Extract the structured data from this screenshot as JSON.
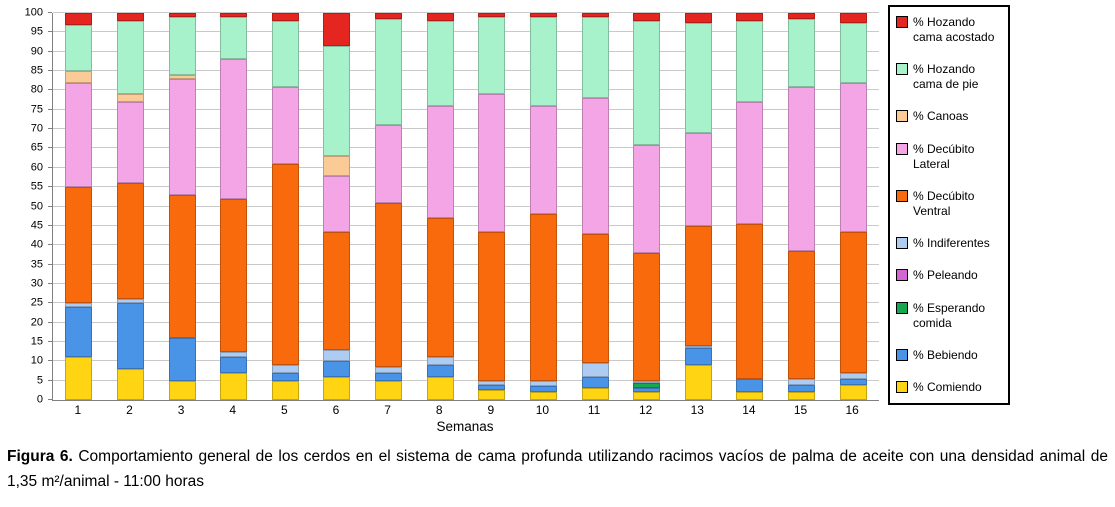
{
  "chart_data": {
    "type": "bar",
    "stacked": true,
    "categories": [
      1,
      2,
      3,
      4,
      5,
      6,
      7,
      8,
      9,
      10,
      11,
      12,
      13,
      14,
      15,
      16
    ],
    "xlabel": "Semanas",
    "ylabel": "",
    "ylim": [
      0,
      100
    ],
    "yticks": [
      0,
      5,
      10,
      15,
      20,
      25,
      30,
      35,
      40,
      45,
      50,
      55,
      60,
      65,
      70,
      75,
      80,
      85,
      90,
      95,
      100
    ],
    "grid": true,
    "legend_position": "right",
    "series": [
      {
        "name": "% Comiendo",
        "color": "#FFD412",
        "values": [
          11,
          8,
          5,
          7,
          5,
          6,
          5,
          6,
          2.5,
          2,
          3,
          2,
          9,
          2,
          2,
          4
        ]
      },
      {
        "name": "% Bebiendo",
        "color": "#4A94E8",
        "values": [
          13,
          17,
          11,
          4,
          2,
          4,
          2,
          3,
          1.5,
          1.5,
          3,
          1,
          4.5,
          3.5,
          2,
          1.5
        ]
      },
      {
        "name": "% Esperando comida",
        "color": "#17A74F",
        "values": [
          0,
          0,
          0,
          0,
          0,
          0,
          0,
          0,
          0,
          0,
          0,
          1.5,
          0,
          0,
          0,
          0
        ]
      },
      {
        "name": "% Peleando",
        "color": "#D466D4",
        "values": [
          0,
          0,
          0,
          0,
          0,
          0,
          0,
          0,
          0,
          0,
          0,
          0,
          0,
          0,
          0,
          0
        ]
      },
      {
        "name": "% Indiferentes",
        "color": "#AECBF2",
        "values": [
          1,
          1,
          0,
          1.5,
          2,
          3,
          1.5,
          2,
          1,
          1.5,
          3.5,
          0.5,
          0.5,
          0,
          1.5,
          1.5
        ]
      },
      {
        "name": "% Decúbito Ventral",
        "color": "#F96A0D",
        "values": [
          30,
          30,
          37,
          39.5,
          52,
          30.5,
          42.5,
          36,
          38.5,
          43,
          33.5,
          33,
          31,
          40,
          33,
          36.5
        ]
      },
      {
        "name": "% Decúbito Lateral",
        "color": "#F3A5E6",
        "values": [
          27,
          21,
          30,
          36,
          20,
          14.5,
          20,
          29,
          35.5,
          28,
          35,
          28,
          24,
          31.5,
          42.5,
          38.5
        ]
      },
      {
        "name": "% Canoas",
        "color": "#FBCB97",
        "values": [
          3,
          2,
          1,
          0,
          0,
          5,
          0,
          0,
          0,
          0,
          0,
          0,
          0,
          0,
          0,
          0
        ]
      },
      {
        "name": "% Hozando cama de pie",
        "color": "#A8F2CB",
        "values": [
          12,
          19,
          15,
          11,
          17,
          28.5,
          27.5,
          22,
          20,
          23,
          21,
          32,
          28.5,
          21,
          17.5,
          15.5
        ]
      },
      {
        "name": "% Hozando cama acostado",
        "color": "#E52520",
        "values": [
          3,
          2,
          1,
          1,
          2,
          8.5,
          1.5,
          2,
          1,
          1,
          1,
          2,
          2.5,
          2,
          1.5,
          2.5
        ]
      }
    ],
    "legend": [
      "% Hozando cama acostado",
      "% Hozando cama de pie",
      "% Canoas",
      "% Decúbito Lateral",
      "% Decúbito Ventral",
      "% Indiferentes",
      "% Peleando",
      "% Esperando comida",
      "% Bebiendo",
      "% Comiendo"
    ]
  },
  "caption": {
    "label": "Figura 6.",
    "text": "Comportamiento general de los cerdos en el sistema de cama profunda utilizando racimos vacíos de palma de aceite con una densidad animal de 1,35 m²/animal - 11:00 horas"
  }
}
